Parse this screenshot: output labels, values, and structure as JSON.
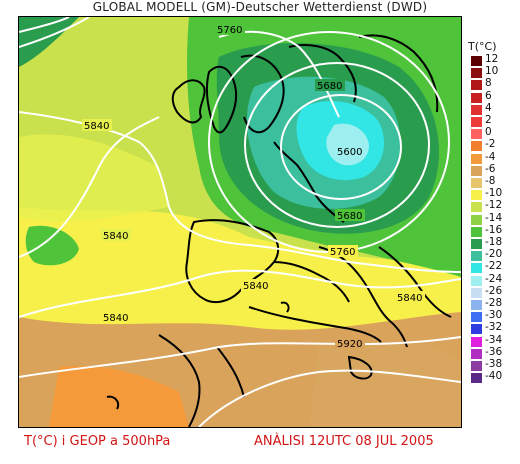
{
  "header": {
    "title": "GLOBAL MODELL (GM)-Deutscher Wetterdienst (DWD)"
  },
  "footer": {
    "left": "T(°C) i GEOP a 500hPa",
    "right": "ANÀLISI 12UTC 08 JUL 2005"
  },
  "legend": {
    "title": "T(°C)",
    "entries": [
      {
        "label": "12",
        "color": "#5a0000"
      },
      {
        "label": "10",
        "color": "#8b0f0f"
      },
      {
        "label": "8",
        "color": "#b01818"
      },
      {
        "label": "6",
        "color": "#c82020"
      },
      {
        "label": "4",
        "color": "#e03030"
      },
      {
        "label": "2",
        "color": "#ef3a3a"
      },
      {
        "label": "0",
        "color": "#ff6060"
      },
      {
        "label": "-2",
        "color": "#f27f2e"
      },
      {
        "label": "-4",
        "color": "#f49a3a"
      },
      {
        "label": "-6",
        "color": "#d9a35c"
      },
      {
        "label": "-8",
        "color": "#e7c56b"
      },
      {
        "label": "-10",
        "color": "#f7f04a"
      },
      {
        "label": "-12",
        "color": "#c9e14d"
      },
      {
        "label": "-14",
        "color": "#8fd245"
      },
      {
        "label": "-16",
        "color": "#4fc43a"
      },
      {
        "label": "-18",
        "color": "#2a9c4e"
      },
      {
        "label": "-20",
        "color": "#3bbf9d"
      },
      {
        "label": "-22",
        "color": "#33e6e6"
      },
      {
        "label": "-24",
        "color": "#9df0ef"
      },
      {
        "label": "-26",
        "color": "#c7dff2"
      },
      {
        "label": "-28",
        "color": "#8ab2ee"
      },
      {
        "label": "-30",
        "color": "#3f6ff1"
      },
      {
        "label": "-32",
        "color": "#2e3de0"
      },
      {
        "label": "-34",
        "color": "#e020e0"
      },
      {
        "label": "-36",
        "color": "#b22ec2"
      },
      {
        "label": "-38",
        "color": "#8d3aa3"
      },
      {
        "label": "-40",
        "color": "#5b2a88"
      }
    ]
  },
  "contour_labels": [
    "5760",
    "5680",
    "5600",
    "5840",
    "5840",
    "5680",
    "5760",
    "5840",
    "5840",
    "5840",
    "5920"
  ]
}
